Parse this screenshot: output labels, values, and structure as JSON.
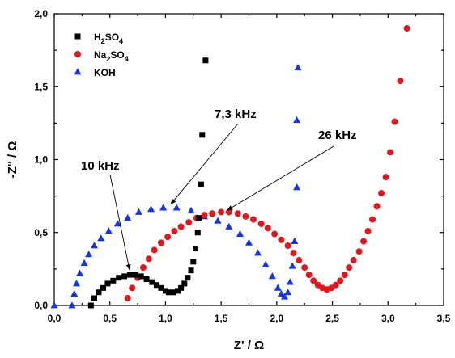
{
  "chart_data": {
    "type": "scatter",
    "xlabel": "Z' / Ω",
    "ylabel": "-Z'' / Ω",
    "xlim": [
      0,
      3.5
    ],
    "ylim": [
      0,
      2.0
    ],
    "xticks": [
      "0,0",
      "0,5",
      "1,0",
      "1,5",
      "2,0",
      "2,5",
      "3,0",
      "3,5"
    ],
    "yticks": [
      "0,0",
      "0,5",
      "1,0",
      "1,5",
      "2,0"
    ],
    "legend_position": "top-left",
    "grid": false,
    "series": [
      {
        "name": "H2SO4",
        "legend_base": "H",
        "legend_sub1": "2",
        "legend_mid": "SO",
        "legend_sub2": "4",
        "marker": "square",
        "color": "#000000",
        "points": [
          [
            0.33,
            0.0
          ],
          [
            0.36,
            0.05
          ],
          [
            0.4,
            0.09
          ],
          [
            0.44,
            0.12
          ],
          [
            0.48,
            0.15
          ],
          [
            0.53,
            0.17
          ],
          [
            0.58,
            0.19
          ],
          [
            0.63,
            0.2
          ],
          [
            0.68,
            0.21
          ],
          [
            0.73,
            0.21
          ],
          [
            0.78,
            0.2
          ],
          [
            0.83,
            0.18
          ],
          [
            0.88,
            0.16
          ],
          [
            0.92,
            0.14
          ],
          [
            0.96,
            0.12
          ],
          [
            1.0,
            0.1
          ],
          [
            1.03,
            0.09
          ],
          [
            1.07,
            0.09
          ],
          [
            1.11,
            0.1
          ],
          [
            1.14,
            0.12
          ],
          [
            1.17,
            0.15
          ],
          [
            1.2,
            0.19
          ],
          [
            1.23,
            0.24
          ],
          [
            1.25,
            0.3
          ],
          [
            1.27,
            0.39
          ],
          [
            1.29,
            0.5
          ],
          [
            1.3,
            0.6
          ],
          [
            1.32,
            0.83
          ],
          [
            1.33,
            1.17
          ],
          [
            1.36,
            1.68
          ]
        ]
      },
      {
        "name": "Na2SO4",
        "legend_base": "Na",
        "legend_sub1": "2",
        "legend_mid": "SO",
        "legend_sub2": "4",
        "marker": "circle",
        "color": "#e8141b",
        "points": [
          [
            0.66,
            0.05
          ],
          [
            0.7,
            0.12
          ],
          [
            0.75,
            0.19
          ],
          [
            0.8,
            0.26
          ],
          [
            0.85,
            0.32
          ],
          [
            0.9,
            0.38
          ],
          [
            0.96,
            0.43
          ],
          [
            1.02,
            0.47
          ],
          [
            1.08,
            0.51
          ],
          [
            1.14,
            0.54
          ],
          [
            1.21,
            0.57
          ],
          [
            1.28,
            0.6
          ],
          [
            1.35,
            0.62
          ],
          [
            1.42,
            0.63
          ],
          [
            1.5,
            0.64
          ],
          [
            1.57,
            0.64
          ],
          [
            1.65,
            0.63
          ],
          [
            1.72,
            0.61
          ],
          [
            1.79,
            0.59
          ],
          [
            1.86,
            0.56
          ],
          [
            1.92,
            0.53
          ],
          [
            1.98,
            0.49
          ],
          [
            2.04,
            0.45
          ],
          [
            2.1,
            0.41
          ],
          [
            2.15,
            0.36
          ],
          [
            2.2,
            0.31
          ],
          [
            2.25,
            0.26
          ],
          [
            2.29,
            0.21
          ],
          [
            2.33,
            0.17
          ],
          [
            2.37,
            0.14
          ],
          [
            2.41,
            0.12
          ],
          [
            2.45,
            0.11
          ],
          [
            2.49,
            0.12
          ],
          [
            2.53,
            0.14
          ],
          [
            2.57,
            0.17
          ],
          [
            2.61,
            0.21
          ],
          [
            2.65,
            0.26
          ],
          [
            2.69,
            0.31
          ],
          [
            2.74,
            0.37
          ],
          [
            2.78,
            0.44
          ],
          [
            2.82,
            0.51
          ],
          [
            2.86,
            0.59
          ],
          [
            2.9,
            0.68
          ],
          [
            2.94,
            0.77
          ],
          [
            2.98,
            0.88
          ],
          [
            3.02,
            1.05
          ],
          [
            3.06,
            1.26
          ],
          [
            3.11,
            1.54
          ],
          [
            3.17,
            1.9
          ]
        ]
      },
      {
        "name": "KOH",
        "legend_base": "KOH",
        "legend_sub1": "",
        "legend_mid": "",
        "legend_sub2": "",
        "marker": "triangle",
        "color": "#1234f0",
        "points": [
          [
            0.0,
            0.0
          ],
          [
            0.16,
            0.0
          ],
          [
            0.18,
            0.08
          ],
          [
            0.2,
            0.15
          ],
          [
            0.23,
            0.22
          ],
          [
            0.27,
            0.29
          ],
          [
            0.31,
            0.35
          ],
          [
            0.36,
            0.41
          ],
          [
            0.42,
            0.46
          ],
          [
            0.49,
            0.51
          ],
          [
            0.57,
            0.56
          ],
          [
            0.66,
            0.6
          ],
          [
            0.76,
            0.64
          ],
          [
            0.87,
            0.66
          ],
          [
            0.98,
            0.67
          ],
          [
            1.1,
            0.67
          ],
          [
            1.23,
            0.65
          ],
          [
            1.35,
            0.61
          ],
          [
            1.47,
            0.58
          ],
          [
            1.57,
            0.54
          ],
          [
            1.67,
            0.49
          ],
          [
            1.75,
            0.43
          ],
          [
            1.83,
            0.36
          ],
          [
            1.9,
            0.28
          ],
          [
            1.96,
            0.2
          ],
          [
            2.01,
            0.12
          ],
          [
            2.04,
            0.08
          ],
          [
            2.07,
            0.06
          ],
          [
            2.1,
            0.09
          ],
          [
            2.12,
            0.16
          ],
          [
            2.14,
            0.27
          ],
          [
            2.16,
            0.44
          ],
          [
            2.18,
            0.81
          ],
          [
            2.18,
            1.27
          ],
          [
            2.19,
            1.63
          ]
        ]
      }
    ],
    "annotations": [
      {
        "text": "10 kHz",
        "point": [
          0.67,
          0.22
        ]
      },
      {
        "text": "7,3 kHz",
        "point": [
          1.03,
          0.67
        ]
      },
      {
        "text": "26 kHz",
        "point": [
          1.53,
          0.64
        ]
      }
    ]
  }
}
